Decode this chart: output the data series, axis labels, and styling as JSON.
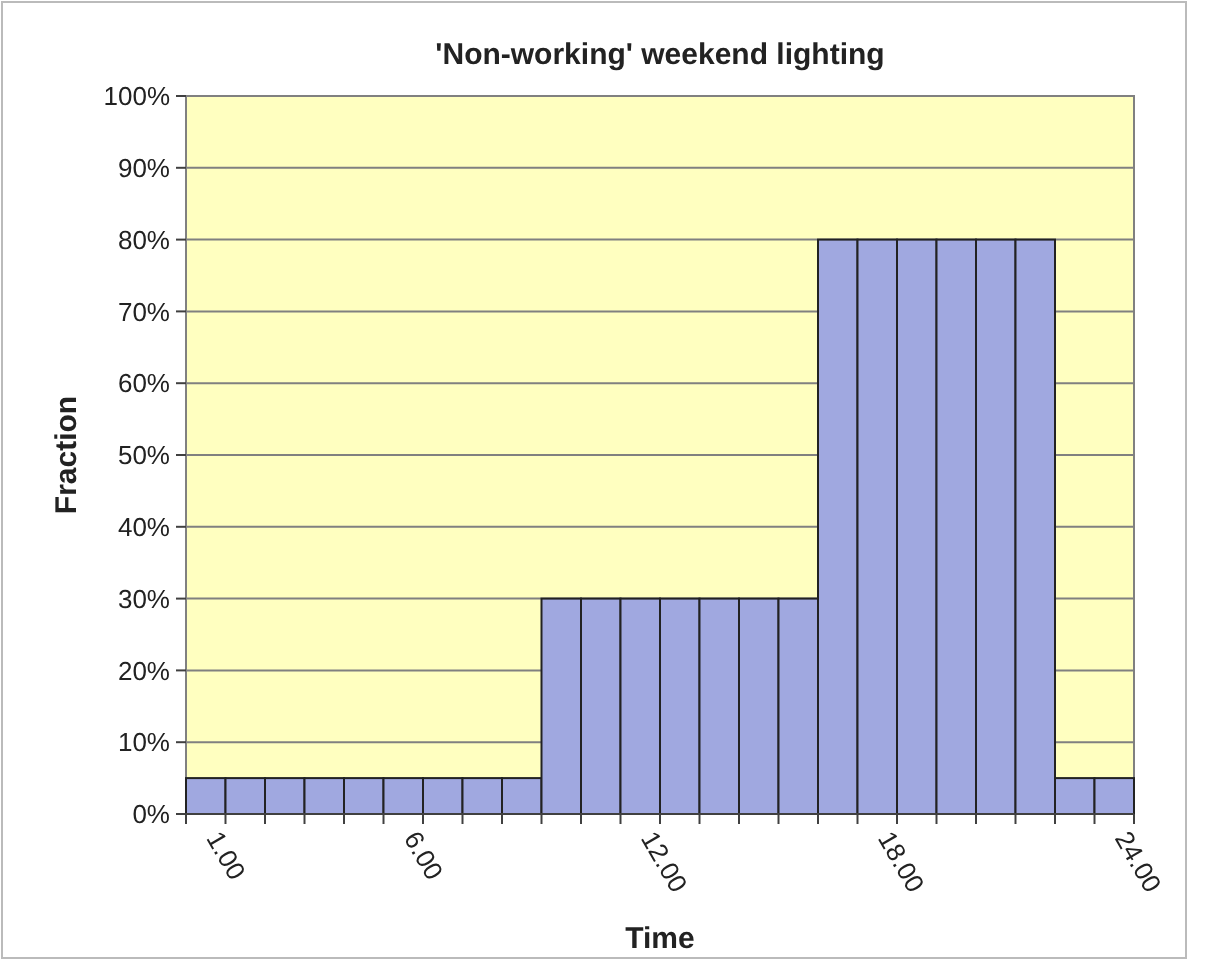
{
  "chart_data": {
    "type": "bar",
    "title": "'Non-working' weekend lighting",
    "xlabel": "Time",
    "ylabel": "Fraction",
    "categories": [
      "1.00",
      null,
      null,
      null,
      null,
      "6.00",
      null,
      null,
      null,
      null,
      null,
      "12.00",
      null,
      null,
      null,
      null,
      null,
      "18.00",
      null,
      null,
      null,
      null,
      null,
      "24.00"
    ],
    "values": [
      5,
      5,
      5,
      5,
      5,
      5,
      5,
      5,
      5,
      30,
      30,
      30,
      30,
      30,
      30,
      30,
      80,
      80,
      80,
      80,
      80,
      80,
      5,
      5
    ],
    "color": "#a0a8e0",
    "ylim": [
      0,
      100
    ],
    "yticks": [
      {
        "value": 0,
        "label": "0%"
      },
      {
        "value": 10,
        "label": "10%"
      },
      {
        "value": 20,
        "label": "20%"
      },
      {
        "value": 30,
        "label": "30%"
      },
      {
        "value": 40,
        "label": "40%"
      },
      {
        "value": 50,
        "label": "50%"
      },
      {
        "value": 60,
        "label": "60%"
      },
      {
        "value": 70,
        "label": "70%"
      },
      {
        "value": 80,
        "label": "80%"
      },
      {
        "value": 90,
        "label": "90%"
      },
      {
        "value": 100,
        "label": "100%"
      }
    ],
    "grid": "y"
  }
}
